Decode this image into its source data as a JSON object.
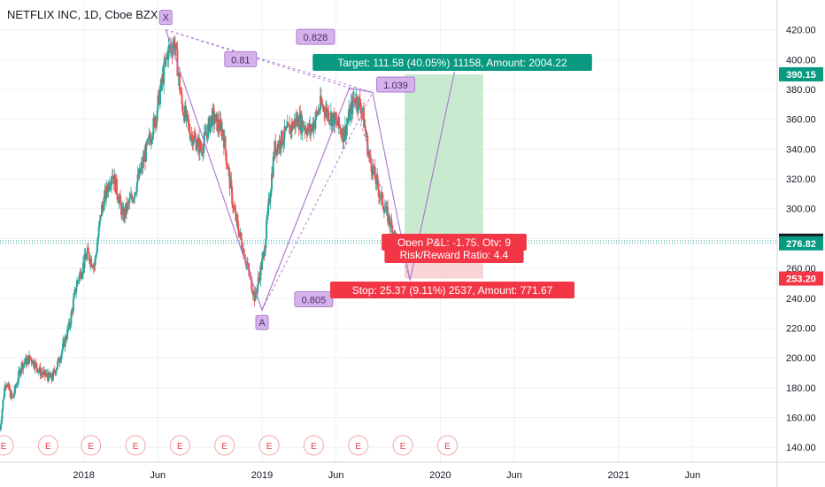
{
  "chart_data": {
    "type": "candlestick",
    "title": "NETFLIX INC, 1D, Cboe BZX",
    "y_axis": {
      "ylim": [
        130,
        440
      ],
      "ticks": [
        140,
        160,
        180,
        200,
        220,
        240,
        260,
        280,
        300,
        320,
        340,
        360,
        380,
        400,
        420
      ],
      "position": "right",
      "grid": true
    },
    "x_axis": {
      "ticks": [
        {
          "label": "2018",
          "t": 2018.0
        },
        {
          "label": "Jun",
          "t": 2018.415
        },
        {
          "label": "2019",
          "t": 2019.0
        },
        {
          "label": "Jun",
          "t": 2019.415
        },
        {
          "label": "2020",
          "t": 2020.0
        },
        {
          "label": "Jun",
          "t": 2020.415
        },
        {
          "label": "2021",
          "t": 2021.0
        },
        {
          "label": "Jun",
          "t": 2021.415
        }
      ],
      "xlim": [
        2017.53,
        2021.89
      ]
    },
    "price_path": [
      {
        "t": 2017.53,
        "p": 152
      },
      {
        "t": 2017.56,
        "p": 185
      },
      {
        "t": 2017.6,
        "p": 172
      },
      {
        "t": 2017.65,
        "p": 195
      },
      {
        "t": 2017.7,
        "p": 200
      },
      {
        "t": 2017.76,
        "p": 190
      },
      {
        "t": 2017.82,
        "p": 186
      },
      {
        "t": 2017.86,
        "p": 198
      },
      {
        "t": 2017.92,
        "p": 222
      },
      {
        "t": 2017.96,
        "p": 250
      },
      {
        "t": 2018.02,
        "p": 270
      },
      {
        "t": 2018.06,
        "p": 262
      },
      {
        "t": 2018.1,
        "p": 300
      },
      {
        "t": 2018.16,
        "p": 325
      },
      {
        "t": 2018.22,
        "p": 295
      },
      {
        "t": 2018.28,
        "p": 310
      },
      {
        "t": 2018.33,
        "p": 330
      },
      {
        "t": 2018.4,
        "p": 360
      },
      {
        "t": 2018.47,
        "p": 405
      },
      {
        "t": 2018.51,
        "p": 412
      },
      {
        "t": 2018.55,
        "p": 370
      },
      {
        "t": 2018.6,
        "p": 350
      },
      {
        "t": 2018.66,
        "p": 340
      },
      {
        "t": 2018.72,
        "p": 362
      },
      {
        "t": 2018.78,
        "p": 352
      },
      {
        "t": 2018.84,
        "p": 300
      },
      {
        "t": 2018.9,
        "p": 270
      },
      {
        "t": 2018.96,
        "p": 240
      },
      {
        "t": 2019.01,
        "p": 270
      },
      {
        "t": 2019.07,
        "p": 340
      },
      {
        "t": 2019.13,
        "p": 350
      },
      {
        "t": 2019.2,
        "p": 360
      },
      {
        "t": 2019.27,
        "p": 352
      },
      {
        "t": 2019.33,
        "p": 370
      },
      {
        "t": 2019.4,
        "p": 360
      },
      {
        "t": 2019.46,
        "p": 350
      },
      {
        "t": 2019.52,
        "p": 375
      },
      {
        "t": 2019.56,
        "p": 368
      },
      {
        "t": 2019.6,
        "p": 335
      },
      {
        "t": 2019.66,
        "p": 310
      },
      {
        "t": 2019.72,
        "p": 290
      },
      {
        "t": 2019.78,
        "p": 270
      },
      {
        "t": 2019.83,
        "p": 275
      }
    ],
    "earnings_markers": {
      "label": "E",
      "t": [
        2017.55,
        2017.8,
        2018.04,
        2018.29,
        2018.54,
        2018.79,
        2019.04,
        2019.29,
        2019.54,
        2019.79,
        2020.04
      ]
    },
    "harmonic_pattern": {
      "points": [
        {
          "label": "X",
          "t": 2018.46,
          "p": 420
        },
        {
          "label": "A",
          "t": 2019.0,
          "p": 232
        },
        {
          "label": "",
          "t": 2019.49,
          "p": 381
        },
        {
          "label": "",
          "t": 2019.62,
          "p": 378
        },
        {
          "label": "",
          "t": 2019.83,
          "p": 252
        },
        {
          "label": "",
          "t": 2020.08,
          "p": 392
        }
      ],
      "ratios": [
        {
          "text": "0.81",
          "t": 2018.88,
          "p": 400
        },
        {
          "text": "0.828",
          "t": 2019.3,
          "p": 415
        },
        {
          "text": "1.039",
          "t": 2019.75,
          "p": 383
        },
        {
          "text": "0.805",
          "t": 2019.29,
          "p": 239
        }
      ]
    },
    "position": {
      "entry": 276.82,
      "target_price": 390.15,
      "stop_price": 253.2,
      "t_start": 2019.8,
      "t_end": 2020.24,
      "target_text": "Target: 111.58 (40.05%) 11158, Amount: 2004.22",
      "stop_text": "Stop: 25.37 (9.11%) 2537, Amount: 771.67",
      "pnl_text": "Open P&L: -1.75, Qty: 9",
      "rr_text": "Risk/Reward Ratio: 4.4"
    },
    "price_tags": [
      {
        "value": "390.15",
        "price": 390.15,
        "color": "#089981"
      },
      {
        "value": "278.57",
        "price": 278.57,
        "color": "#131722"
      },
      {
        "value": "276.82",
        "price": 276.82,
        "color": "#089981"
      },
      {
        "value": "253.20",
        "price": 253.2,
        "color": "#f23645"
      }
    ],
    "colors": {
      "up": "#26a69a",
      "down": "#ef5350",
      "pattern": "#b07cd0",
      "target_zone": "#c8ebcf",
      "stop_zone": "#f7d4d6"
    }
  }
}
